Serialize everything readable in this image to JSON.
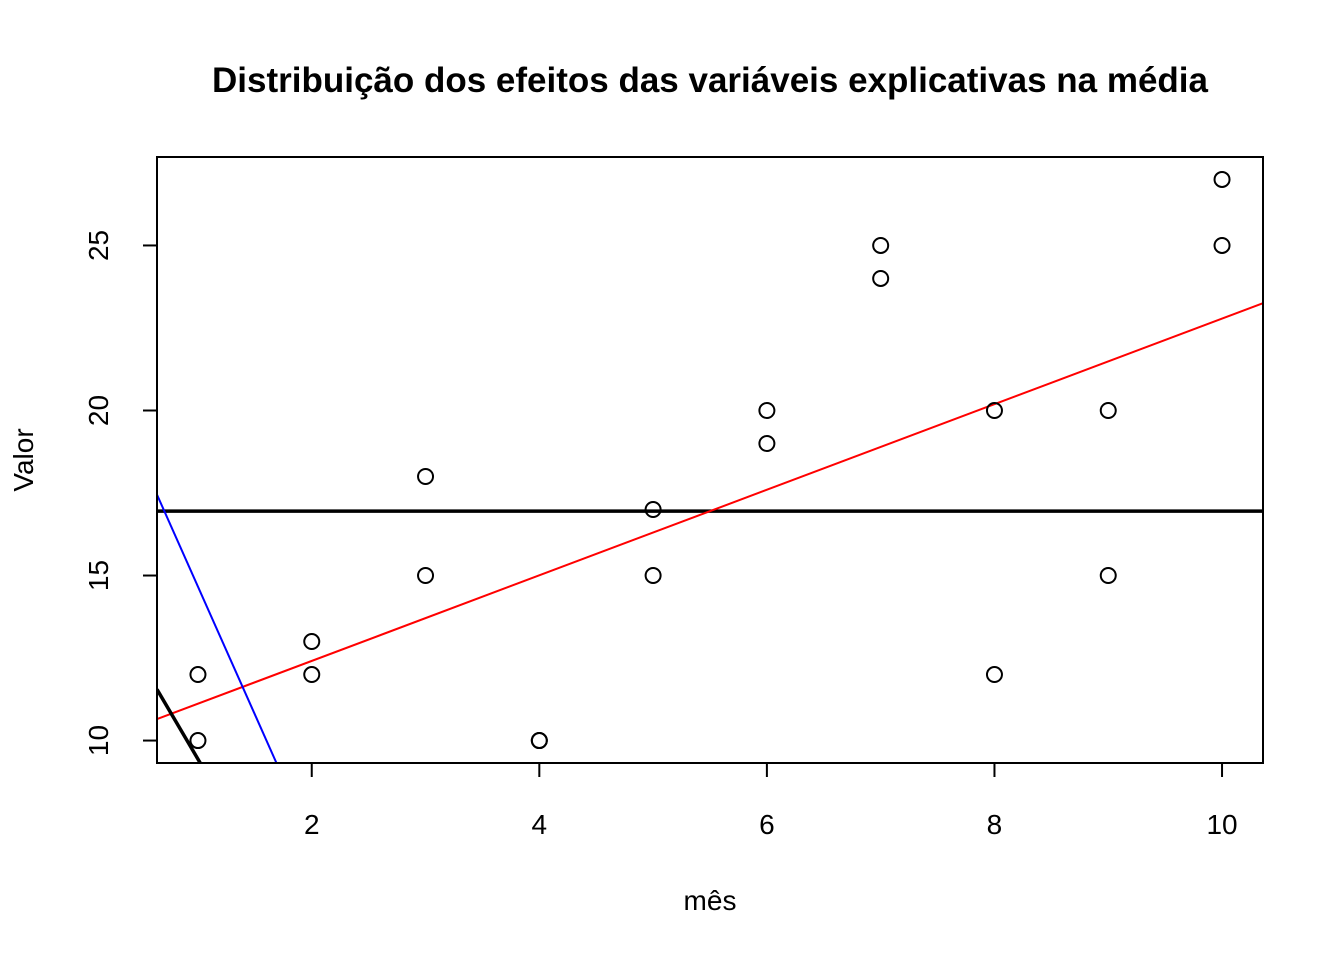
{
  "chart_data": {
    "type": "scatter",
    "title": "Distribuição dos efeitos das variáveis explicativas na média",
    "xlabel": "mês",
    "ylabel": "Valor",
    "xlim": [
      0.64,
      10.36
    ],
    "ylim": [
      9.32,
      27.68
    ],
    "x_ticks": [
      2,
      4,
      6,
      8,
      10
    ],
    "y_ticks": [
      10,
      15,
      20,
      25
    ],
    "grid": false,
    "legend": "none",
    "points": {
      "x": [
        1,
        1,
        2,
        2,
        3,
        3,
        4,
        4,
        5,
        5,
        6,
        6,
        7,
        7,
        8,
        8,
        9,
        9,
        10,
        10
      ],
      "y": [
        12,
        10,
        13,
        12,
        18,
        15,
        10,
        10,
        17,
        15,
        20,
        19,
        25,
        24,
        20,
        12,
        20,
        15,
        27,
        25
      ]
    },
    "lines": [
      {
        "kind": "horizontal",
        "y": 16.95,
        "color": "#000000",
        "width": "thick"
      },
      {
        "kind": "segment",
        "x": [
          0.64,
          10.36
        ],
        "y": [
          10.65,
          23.25
        ],
        "color": "#ff0000",
        "width": "thin"
      },
      {
        "kind": "segment",
        "x": [
          0.64,
          1.69
        ],
        "y": [
          17.45,
          9.32
        ],
        "color": "#0000ff",
        "width": "thin"
      },
      {
        "kind": "segment",
        "x": [
          0.64,
          1.02
        ],
        "y": [
          11.55,
          9.32
        ],
        "color": "#000000",
        "width": "thick"
      }
    ]
  }
}
